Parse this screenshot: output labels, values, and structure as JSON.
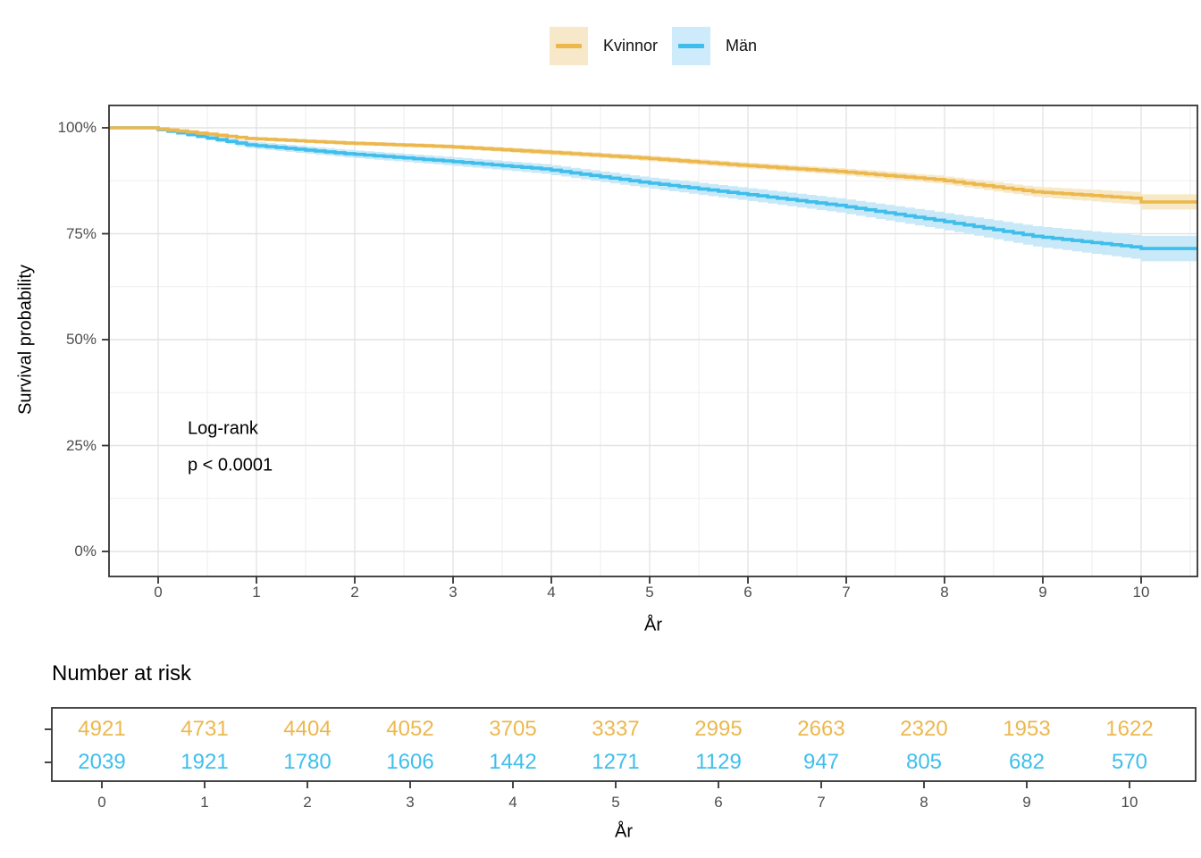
{
  "legend": {
    "items": [
      {
        "label": "Kvinnor",
        "line_color": "#ECB84E",
        "fill_color": "#F6E8C9"
      },
      {
        "label": "Män",
        "line_color": "#3FBEEC",
        "fill_color": "#CDEBFA"
      }
    ]
  },
  "chart_data": {
    "type": "line",
    "subtype": "kaplan-meier-survival-curve",
    "title": "",
    "xlabel": "År",
    "ylabel": "Survival probability",
    "xlim": [
      -0.5,
      10.57
    ],
    "ylim_percent": [
      0,
      100
    ],
    "x_ticks": [
      0,
      1,
      2,
      3,
      4,
      5,
      6,
      7,
      8,
      9,
      10
    ],
    "y_ticks": [
      {
        "value": 0,
        "label": "0%"
      },
      {
        "value": 25,
        "label": "25%"
      },
      {
        "value": 50,
        "label": "50%"
      },
      {
        "value": 75,
        "label": "75%"
      },
      {
        "value": 100,
        "label": "100%"
      }
    ],
    "y_minor_gridlines": [
      12.5,
      37.5,
      62.5,
      87.5
    ],
    "x_minor_gridlines": [
      0.5,
      1.5,
      2.5,
      3.5,
      4.5,
      5.5,
      6.5,
      7.5,
      8.5,
      9.5,
      10.5
    ],
    "grid": true,
    "legend_position": "top",
    "annotation": {
      "line1": "Log-rank",
      "line2": "p < 0.0001"
    },
    "x_years": [
      0,
      1,
      2,
      3,
      4,
      5,
      6,
      7,
      8,
      9,
      10
    ],
    "series": [
      {
        "name": "Kvinnor",
        "color": "#ECB84E",
        "ribbon_color": "#F7E9C7",
        "survival_percent": [
          100,
          97.5,
          96.4,
          95.6,
          94.3,
          92.9,
          91.2,
          89.7,
          87.8,
          84.9,
          83.4
        ],
        "ci_halfwidth_percent": [
          0.15,
          0.4,
          0.45,
          0.5,
          0.6,
          0.65,
          0.7,
          0.8,
          0.95,
          1.2,
          1.5
        ],
        "end_x": 10.55,
        "end_percent": 82.5,
        "end_ci_halfwidth": 1.8
      },
      {
        "name": "Män",
        "color": "#3FBEEC",
        "ribbon_color": "#C9E9F8",
        "survival_percent": [
          100,
          96.0,
          93.9,
          92.2,
          90.3,
          87.2,
          84.5,
          81.7,
          78.2,
          74.4,
          71.9
        ],
        "ci_halfwidth_percent": [
          0.2,
          0.8,
          0.9,
          1.0,
          1.15,
          1.3,
          1.5,
          1.7,
          2.0,
          2.4,
          2.8
        ],
        "end_x": 10.55,
        "end_percent": 71.5,
        "end_ci_halfwidth": 3.0
      }
    ],
    "risk_table": {
      "title": "Number at risk",
      "xlabel": "År",
      "x_ticks": [
        0,
        1,
        2,
        3,
        4,
        5,
        6,
        7,
        8,
        9,
        10
      ],
      "rows": [
        {
          "name": "Kvinnor",
          "color": "#ECB84E",
          "values": [
            4921,
            4731,
            4404,
            4052,
            3705,
            3337,
            2995,
            2663,
            2320,
            1953,
            1622
          ]
        },
        {
          "name": "Män",
          "color": "#3FBEEC",
          "values": [
            2039,
            1921,
            1780,
            1606,
            1442,
            1271,
            1129,
            947,
            805,
            682,
            570
          ]
        }
      ]
    },
    "style": {
      "panel_border_color": "#333333",
      "tick_color": "#333333",
      "grid_major_color": "#E3E3E3",
      "grid_minor_color": "#EFEFEF",
      "axis_text_color": "#4d4d4d",
      "background": "#FFFFFF"
    }
  }
}
